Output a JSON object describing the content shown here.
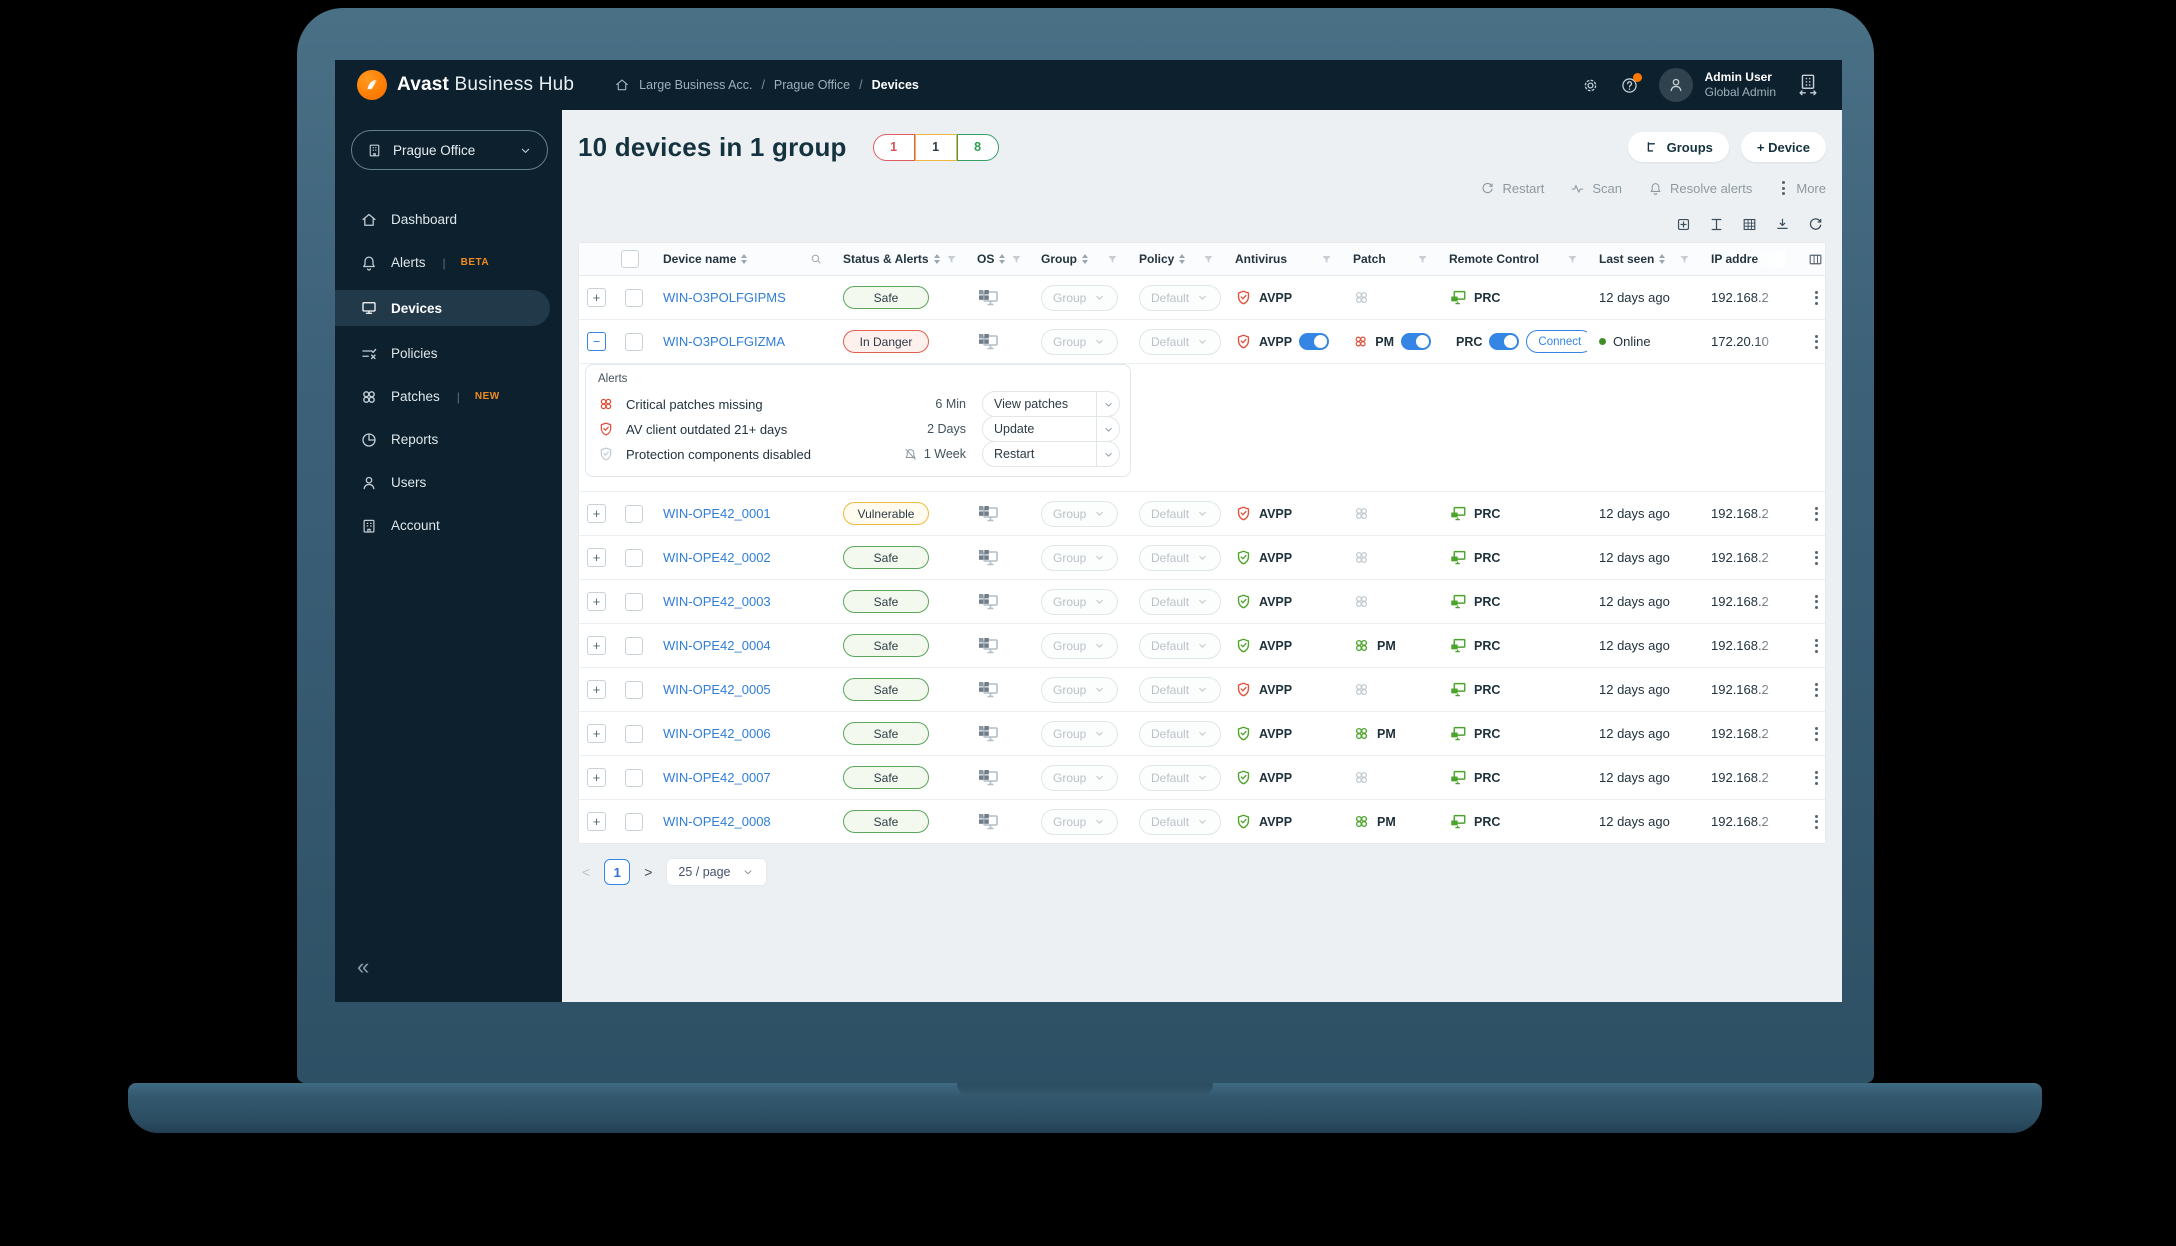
{
  "topbar": {
    "brand_bold": "Avast",
    "brand_light": "Business Hub",
    "breadcrumb": [
      "Large Business Acc.",
      "Prague Office",
      "Devices"
    ],
    "user_name": "Admin User",
    "user_role": "Global Admin"
  },
  "sidebar": {
    "company": "Prague Office",
    "items": [
      {
        "label": "Dashboard",
        "icon": "home",
        "active": false,
        "badge": ""
      },
      {
        "label": "Alerts",
        "icon": "bell",
        "active": false,
        "badge": "BETA"
      },
      {
        "label": "Devices",
        "icon": "monitor",
        "active": true,
        "badge": ""
      },
      {
        "label": "Policies",
        "icon": "policies",
        "active": false,
        "badge": ""
      },
      {
        "label": "Patches",
        "icon": "rings",
        "active": false,
        "badge": "NEW"
      },
      {
        "label": "Reports",
        "icon": "pie",
        "active": false,
        "badge": ""
      },
      {
        "label": "Users",
        "icon": "person",
        "active": false,
        "badge": ""
      },
      {
        "label": "Account",
        "icon": "account",
        "active": false,
        "badge": ""
      }
    ]
  },
  "page": {
    "title": "10 devices in 1 group",
    "counts": [
      {
        "value": "1",
        "color": "#e25c66",
        "text": "#d94f57"
      },
      {
        "value": "1",
        "color": "#eeb63e",
        "text": "#2e3b45"
      },
      {
        "value": "8",
        "color": "#33a163",
        "text": "#2e9e54"
      }
    ],
    "buttons": {
      "groups": "Groups",
      "device": "+ Device"
    },
    "bulk_actions": [
      "Restart",
      "Scan",
      "Resolve alerts",
      "More"
    ],
    "pagination": {
      "page": "1",
      "page_size": "25 / page"
    }
  },
  "table": {
    "labels": {
      "group": "Group",
      "policy": "Default",
      "antivirus": "AVPP",
      "patch": "PM",
      "remote": "PRC",
      "connect": "Connect"
    },
    "headers": [
      {
        "label": "Device name",
        "sort": true,
        "funnel": false,
        "search": true
      },
      {
        "label": "Status & Alerts",
        "sort": true,
        "funnel": true
      },
      {
        "label": "OS",
        "sort": true,
        "funnel": true
      },
      {
        "label": "Group",
        "sort": true,
        "funnel": true
      },
      {
        "label": "Policy",
        "sort": true,
        "funnel": true
      },
      {
        "label": "Antivirus",
        "sort": false,
        "funnel": true
      },
      {
        "label": "Patch",
        "sort": false,
        "funnel": true
      },
      {
        "label": "Remote Control",
        "sort": false,
        "funnel": true
      },
      {
        "label": "Last seen",
        "sort": true,
        "funnel": true
      },
      {
        "label": "IP addre",
        "sort": false,
        "funnel": false
      }
    ],
    "rows": [
      {
        "name": "WIN-O3POLFGIPMS",
        "status": "Safe",
        "status_kind": "safe",
        "av": "red",
        "av_toggle": false,
        "patch": "none",
        "patch_toggle": false,
        "rc_toggle": false,
        "connect": false,
        "last_seen": "12 days ago",
        "online": false,
        "ip": "192.168.2",
        "expanded": false
      },
      {
        "name": "WIN-O3POLFGIZMA",
        "status": "In Danger",
        "status_kind": "danger",
        "av": "red",
        "av_toggle": true,
        "patch": "red",
        "patch_toggle": true,
        "rc_toggle": true,
        "connect": true,
        "last_seen": "Online",
        "online": true,
        "ip": "172.20.10",
        "expanded": true
      },
      {
        "name": "WIN-OPE42_0001",
        "status": "Vulnerable",
        "status_kind": "vuln",
        "av": "red",
        "av_toggle": false,
        "patch": "none",
        "patch_toggle": false,
        "rc_toggle": false,
        "connect": false,
        "last_seen": "12 days ago",
        "online": false,
        "ip": "192.168.2",
        "expanded": false
      },
      {
        "name": "WIN-OPE42_0002",
        "status": "Safe",
        "status_kind": "safe",
        "av": "green",
        "av_toggle": false,
        "patch": "none",
        "patch_toggle": false,
        "rc_toggle": false,
        "connect": false,
        "last_seen": "12 days ago",
        "online": false,
        "ip": "192.168.2",
        "expanded": false
      },
      {
        "name": "WIN-OPE42_0003",
        "status": "Safe",
        "status_kind": "safe",
        "av": "green",
        "av_toggle": false,
        "patch": "none",
        "patch_toggle": false,
        "rc_toggle": false,
        "connect": false,
        "last_seen": "12 days ago",
        "online": false,
        "ip": "192.168.2",
        "expanded": false
      },
      {
        "name": "WIN-OPE42_0004",
        "status": "Safe",
        "status_kind": "safe",
        "av": "green",
        "av_toggle": false,
        "patch": "green",
        "patch_toggle": false,
        "rc_toggle": false,
        "connect": false,
        "last_seen": "12 days ago",
        "online": false,
        "ip": "192.168.2",
        "expanded": false
      },
      {
        "name": "WIN-OPE42_0005",
        "status": "Safe",
        "status_kind": "safe",
        "av": "red",
        "av_toggle": false,
        "patch": "none",
        "patch_toggle": false,
        "rc_toggle": false,
        "connect": false,
        "last_seen": "12 days ago",
        "online": false,
        "ip": "192.168.2",
        "expanded": false
      },
      {
        "name": "WIN-OPE42_0006",
        "status": "Safe",
        "status_kind": "safe",
        "av": "green",
        "av_toggle": false,
        "patch": "green",
        "patch_toggle": false,
        "rc_toggle": false,
        "connect": false,
        "last_seen": "12 days ago",
        "online": false,
        "ip": "192.168.2",
        "expanded": false
      },
      {
        "name": "WIN-OPE42_0007",
        "status": "Safe",
        "status_kind": "safe",
        "av": "green",
        "av_toggle": false,
        "patch": "none",
        "patch_toggle": false,
        "rc_toggle": false,
        "connect": false,
        "last_seen": "12 days ago",
        "online": false,
        "ip": "192.168.2",
        "expanded": false
      },
      {
        "name": "WIN-OPE42_0008",
        "status": "Safe",
        "status_kind": "safe",
        "av": "green",
        "av_toggle": false,
        "patch": "green",
        "patch_toggle": false,
        "rc_toggle": false,
        "connect": false,
        "last_seen": "12 days ago",
        "online": false,
        "ip": "192.168.2",
        "expanded": false
      }
    ],
    "alerts": {
      "title": "Alerts",
      "rows": [
        {
          "icon": "patch-red-icon",
          "text": "Critical patches missing",
          "muted": false,
          "time": "6 Min",
          "action": "View patches"
        },
        {
          "icon": "shield-red-icon",
          "text": "AV client outdated 21+ days",
          "muted": false,
          "time": "2 Days",
          "action": "Update"
        },
        {
          "icon": "shield-gray-icon",
          "text": "Protection components disabled",
          "muted": true,
          "time": "1 Week",
          "action": "Restart"
        }
      ]
    }
  },
  "colors": {
    "accent_orange": "#ff7800",
    "toggle_blue": "#3585e4",
    "link_blue": "#2f7ed8",
    "danger_red": "#e1503c",
    "ok_green": "#4ca32b",
    "dark_navy": "#0c202e"
  }
}
